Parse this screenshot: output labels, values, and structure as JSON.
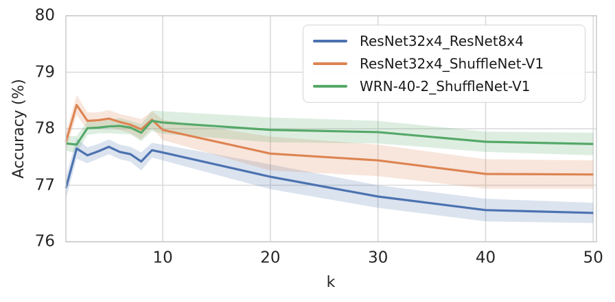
{
  "figure": {
    "background": "#ffffff",
    "grid_color": "#d9d9d9",
    "spine_color": "#cccccc",
    "text_color": "#262626"
  },
  "chart_data": {
    "type": "line",
    "title": "",
    "xlabel": "k",
    "ylabel": "Accuracy (%)",
    "xlim": [
      1,
      50.3
    ],
    "ylim": [
      76,
      80
    ],
    "xticks": [
      10,
      20,
      30,
      40,
      50
    ],
    "yticks": [
      76,
      77,
      78,
      79,
      80
    ],
    "grid": true,
    "legend_position": "upper right",
    "band_opacity": 0.2,
    "x": [
      1,
      2,
      3,
      4,
      5,
      6,
      7,
      8,
      9,
      10,
      20,
      30,
      40,
      50
    ],
    "series": [
      {
        "name": "ResNet32x4_ResNet8x4",
        "color": "#4C72B0",
        "values": [
          76.95,
          77.65,
          77.53,
          77.6,
          77.68,
          77.59,
          77.55,
          77.42,
          77.62,
          77.58,
          77.15,
          76.8,
          76.56,
          76.51
        ],
        "band": [
          0.2,
          0.18,
          0.14,
          0.13,
          0.13,
          0.13,
          0.13,
          0.16,
          0.13,
          0.14,
          0.22,
          0.2,
          0.2,
          0.18
        ]
      },
      {
        "name": "ResNet32x4_ShuffleNet-V1",
        "color": "#DD8452",
        "values": [
          77.77,
          78.42,
          78.14,
          78.15,
          78.18,
          78.12,
          78.07,
          77.99,
          78.16,
          77.98,
          77.56,
          77.44,
          77.2,
          77.19
        ],
        "band": [
          0.16,
          0.18,
          0.15,
          0.14,
          0.15,
          0.14,
          0.15,
          0.18,
          0.15,
          0.18,
          0.3,
          0.28,
          0.26,
          0.25
        ]
      },
      {
        "name": "WRN-40-2_ShuffleNet-V1",
        "color": "#55A868",
        "values": [
          77.74,
          77.72,
          78.01,
          78.02,
          78.04,
          78.05,
          78.02,
          77.93,
          78.14,
          78.11,
          77.98,
          77.94,
          77.77,
          77.73
        ],
        "band": [
          0.13,
          0.15,
          0.12,
          0.1,
          0.12,
          0.14,
          0.12,
          0.15,
          0.18,
          0.2,
          0.22,
          0.2,
          0.18,
          0.2
        ]
      }
    ]
  }
}
